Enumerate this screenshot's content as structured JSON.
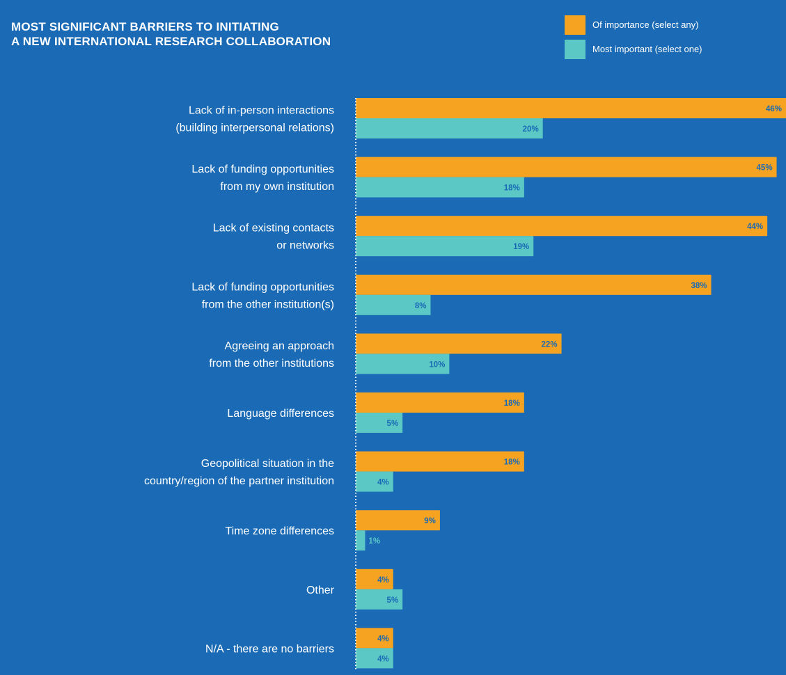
{
  "title_lines": [
    "MOST SIGNIFICANT BARRIERS TO INITIATING",
    "A NEW INTERNATIONAL RESEARCH COLLABORATION"
  ],
  "legend": [
    {
      "label": "Of importance (select any)",
      "color": "#f6a321"
    },
    {
      "label": "Most important (select one)",
      "color": "#5bc8c6"
    }
  ],
  "colors": {
    "background": "#1a6ab5",
    "series_importance": "#f6a321",
    "series_most": "#5bc8c6",
    "axis_line": "#ffffff"
  },
  "chart_data": {
    "type": "bar",
    "orientation": "horizontal",
    "categories": [
      [
        "Lack of in-person interactions",
        "(building interpersonal relations)"
      ],
      [
        "Lack of funding opportunities",
        "from my own institution"
      ],
      [
        "Lack of existing contacts",
        "or networks"
      ],
      [
        "Lack of funding opportunities",
        "from the other institution(s)"
      ],
      [
        "Agreeing an approach",
        "from the other institutions"
      ],
      [
        "Language differences"
      ],
      [
        "Geopolitical situation in the",
        "country/region of the partner institution"
      ],
      [
        "Time zone differences"
      ],
      [
        "Other"
      ],
      [
        "N/A - there are no barriers"
      ]
    ],
    "series": [
      {
        "name": "Of importance (select any)",
        "values": [
          46,
          45,
          44,
          38,
          22,
          18,
          18,
          9,
          4,
          4
        ],
        "labels": [
          "46%",
          "45%",
          "44%",
          "38%",
          "22%",
          "18%",
          "18%",
          "9%",
          "4%",
          "4%"
        ]
      },
      {
        "name": "Most important (select one)",
        "values": [
          20,
          18,
          19,
          8,
          10,
          5,
          4,
          1,
          5,
          4
        ],
        "labels": [
          "20%",
          "18%",
          "19%",
          "8%",
          "10%",
          "5%",
          "4%",
          "1%",
          "5%",
          "4%"
        ]
      }
    ],
    "xlim": [
      0,
      46
    ],
    "grid": false,
    "legend_position": "top-right"
  }
}
